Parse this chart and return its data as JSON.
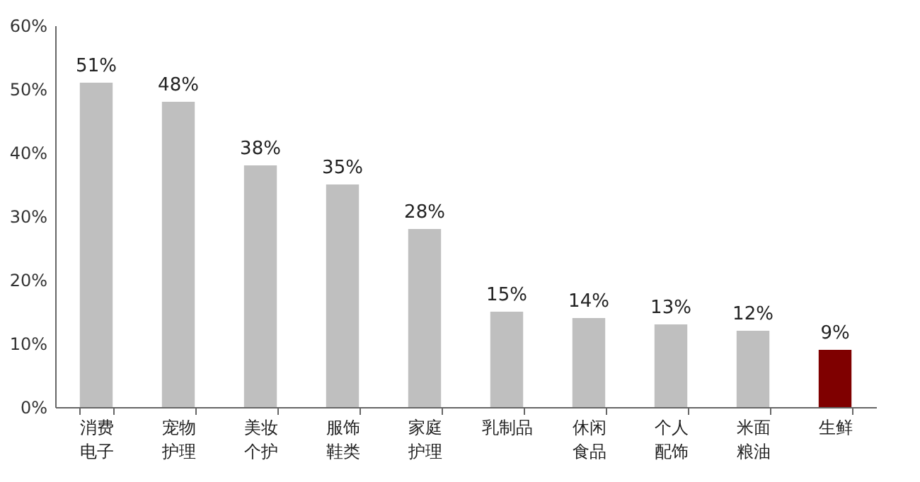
{
  "chart_data": {
    "type": "bar",
    "categories": [
      "消费电子",
      "宠物护理",
      "美妆个护",
      "服饰鞋类",
      "家庭护理",
      "乳制品",
      "休闲食品",
      "个人配饰",
      "米面粮油",
      "生鲜"
    ],
    "values": [
      51,
      48,
      38,
      35,
      28,
      15,
      14,
      13,
      12,
      9
    ],
    "colors": [
      "#bfbfbf",
      "#bfbfbf",
      "#bfbfbf",
      "#bfbfbf",
      "#bfbfbf",
      "#bfbfbf",
      "#bfbfbf",
      "#bfbfbf",
      "#bfbfbf",
      "#7f0000"
    ],
    "value_labels": [
      "51%",
      "48%",
      "38%",
      "35%",
      "28%",
      "15%",
      "14%",
      "13%",
      "12%",
      "9%"
    ],
    "ylim": [
      0,
      60
    ],
    "yticks": [
      {
        "value": 0,
        "label": "0%"
      },
      {
        "value": 10,
        "label": "10%"
      },
      {
        "value": 20,
        "label": "20%"
      },
      {
        "value": 30,
        "label": "30%"
      },
      {
        "value": 40,
        "label": "40%"
      },
      {
        "value": 50,
        "label": "50%"
      },
      {
        "value": 60,
        "label": "60%"
      }
    ],
    "grid": false
  }
}
